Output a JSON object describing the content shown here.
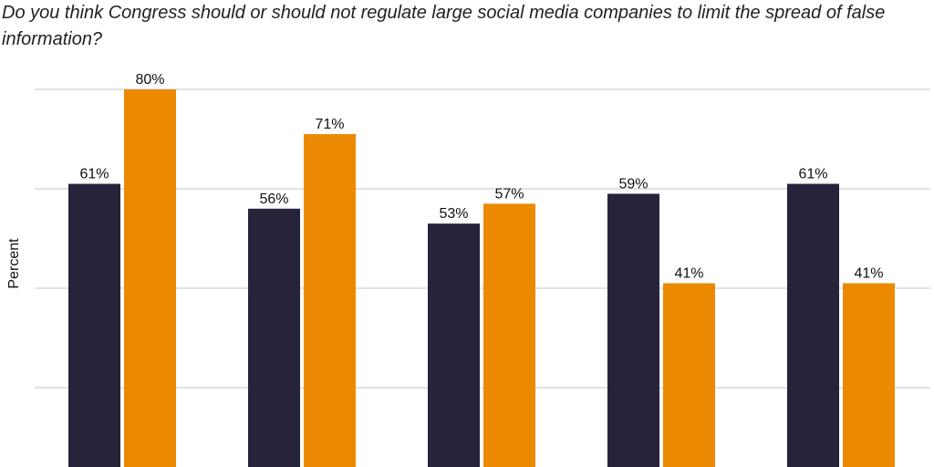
{
  "chart_data": {
    "type": "bar",
    "title": "Do you think Congress should or should not regulate large social media companies to limit the spread of false information?",
    "ylabel": "Percent",
    "ylim": [
      0,
      100
    ],
    "grid": true,
    "categories": [
      "",
      "",
      "",
      "",
      ""
    ],
    "series": [
      {
        "color": "#27233b",
        "values": [
          61,
          56,
          53,
          59,
          61
        ],
        "labels": [
          "61%",
          "56%",
          "53%",
          "59%",
          "61%"
        ]
      },
      {
        "color": "#eb8a00",
        "values": [
          80,
          71,
          57,
          41,
          41
        ],
        "labels": [
          "80%",
          "71%",
          "57%",
          "41%",
          "41%"
        ]
      }
    ]
  }
}
